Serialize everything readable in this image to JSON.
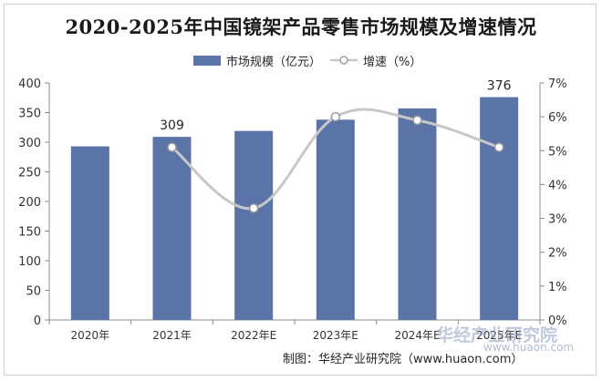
{
  "title": "2020-2025年中国镜架产品零售市场规模及增速情况",
  "chart_data": {
    "type": "bar+line",
    "categories": [
      "2020年",
      "2021年",
      "2022年E",
      "2023年E",
      "2024年E",
      "2025年E"
    ],
    "series": [
      {
        "name": "市场规模（亿元）",
        "type": "bar",
        "axis": "left",
        "color": "#5b74a8",
        "values": [
          293,
          309,
          319,
          338,
          357,
          376
        ],
        "data_labels": [
          "",
          "309",
          "",
          "",
          "",
          "376"
        ]
      },
      {
        "name": "增速（%）",
        "type": "line",
        "axis": "right",
        "color": "#c8c8c8",
        "values": [
          null,
          5.1,
          3.3,
          6.0,
          5.9,
          5.1
        ]
      }
    ],
    "y_left": {
      "ylim": [
        0,
        400
      ],
      "ticks": [
        "0",
        "50",
        "100",
        "150",
        "200",
        "250",
        "300",
        "350",
        "400"
      ]
    },
    "y_right": {
      "ylim": [
        0,
        7
      ],
      "ticks": [
        "0%",
        "1%",
        "2%",
        "3%",
        "4%",
        "5%",
        "6%",
        "7%"
      ]
    },
    "legend": {
      "position": "top-center",
      "entries": [
        "市场规模（亿元）",
        "增速（%）"
      ]
    },
    "grid": false
  },
  "credit": "制图：华经产业研究院（www.huaon.com）",
  "watermark": {
    "text": "华经产业研究院",
    "url": "www.huaon.com"
  }
}
